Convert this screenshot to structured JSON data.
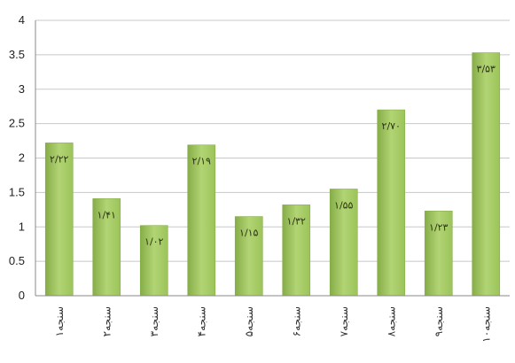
{
  "chart_data": {
    "type": "bar",
    "categories": [
      "سنجه۱",
      "سنجه۲",
      "سنجه۳",
      "سنجه۴",
      "سنجه۵",
      "سنجه۶",
      "سنجه۷",
      "سنجه۸",
      "سنجه۹",
      "سنجه۱۰"
    ],
    "values": [
      2.22,
      1.41,
      1.02,
      2.19,
      1.15,
      1.32,
      1.55,
      2.7,
      1.23,
      3.53
    ],
    "data_labels": [
      "۲/۲۲",
      "۱/۴۱",
      "۱/۰۲",
      "۲/۱۹",
      "۱/۱۵",
      "۱/۳۲",
      "۱/۵۵",
      "۲/۷۰",
      "۱/۲۳",
      "۳/۵۳"
    ],
    "yticks": [
      "0",
      "0.5",
      "1",
      "1.5",
      "2",
      "2.5",
      "3",
      "3.5",
      "4"
    ],
    "ylim": [
      0,
      4
    ],
    "grid": true,
    "title": "",
    "xlabel": "",
    "ylabel": "",
    "colors": {
      "bar": "#9cc45a",
      "bar_light": "#b2d474",
      "bar_dark": "#86ad48",
      "grid": "#c8c8c8",
      "axis": "#888888"
    }
  }
}
